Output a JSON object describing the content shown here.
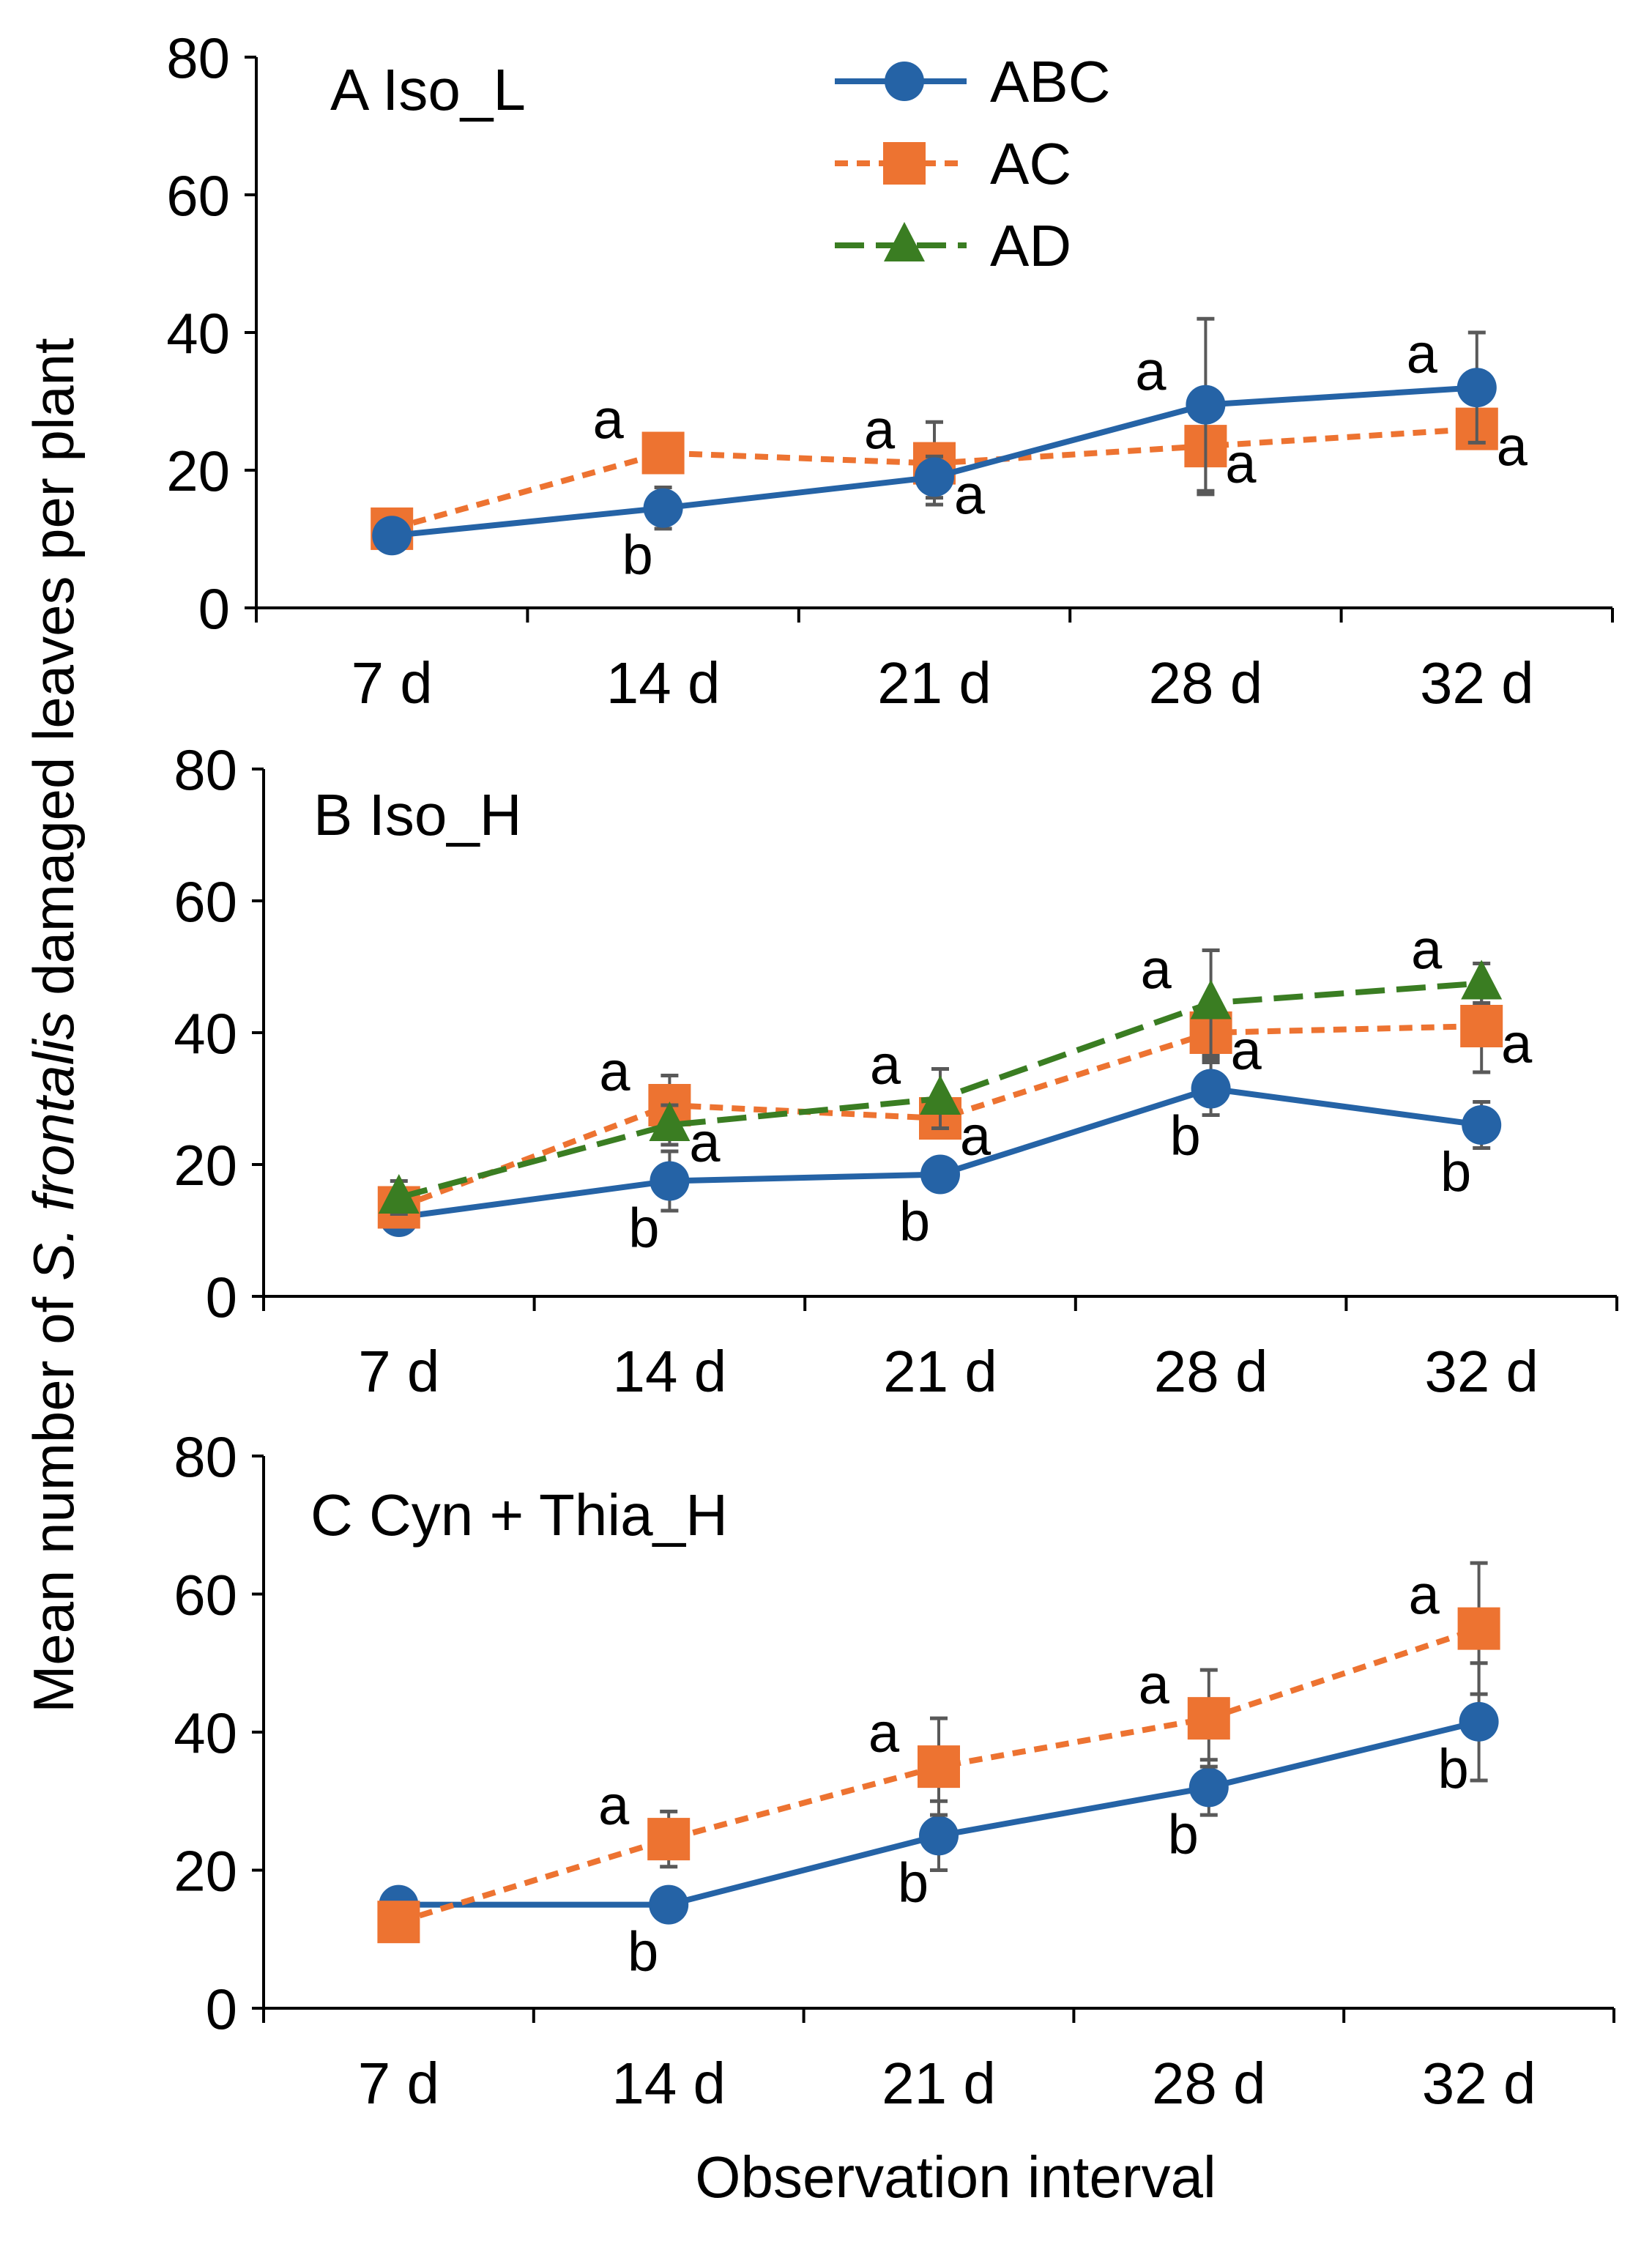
{
  "chart_data": {
    "type": "line",
    "ylabel_parts": [
      "Mean number of ",
      "S. frontalis",
      " damaged leaves per plant"
    ],
    "xlabel": "Observation interval",
    "categories": [
      "7 d",
      "14 d",
      "21 d",
      "28 d",
      "32 d"
    ],
    "yticks": [
      "0",
      "20",
      "40",
      "60",
      "80"
    ],
    "ylim": [
      0,
      80
    ],
    "legend": {
      "placement": "top-center of panel A",
      "entries": [
        {
          "name": "ABC",
          "color": "#2563a6",
          "marker": "circle",
          "dash": "solid"
        },
        {
          "name": "AC",
          "color": "#ed7331",
          "marker": "square",
          "dash": "short-dash"
        },
        {
          "name": "AD",
          "color": "#3a7d22",
          "marker": "triangle",
          "dash": "long-dash"
        }
      ]
    },
    "panels": [
      {
        "title": "A   Iso_L",
        "series": [
          {
            "name": "AC",
            "values": [
              11.5,
              22.5,
              21,
              23.5,
              26
            ],
            "errors": [
              0,
              0,
              6,
              7,
              0
            ],
            "letters": [
              "",
              "a",
              "a",
              "a",
              "a"
            ],
            "letter_pos": [
              "",
              "above",
              "above",
              "right",
              "right"
            ]
          },
          {
            "name": "ABC",
            "values": [
              10.5,
              14.5,
              19,
              29.5,
              32
            ],
            "errors": [
              0,
              3,
              3,
              12.5,
              8
            ],
            "letters": [
              "",
              "b",
              "a",
              "a",
              "a"
            ],
            "letter_pos": [
              "",
              "below",
              "right",
              "above",
              "above"
            ]
          }
        ]
      },
      {
        "title": "B   Iso_H",
        "series": [
          {
            "name": "ABC",
            "values": [
              12,
              17.5,
              18.5,
              31.5,
              26
            ],
            "errors": [
              0,
              4.5,
              0,
              4,
              3.5
            ],
            "letters": [
              "",
              "b",
              "b",
              "b",
              "b"
            ],
            "letter_pos": [
              "",
              "below",
              "below",
              "below",
              "below"
            ]
          },
          {
            "name": "AC",
            "values": [
              13.5,
              29,
              27,
              40,
              41
            ],
            "errors": [
              0,
              4.5,
              0,
              4,
              7
            ],
            "letters": [
              "",
              "a",
              "a",
              "a",
              "a"
            ],
            "letter_pos": [
              "",
              "above",
              "right",
              "right",
              "right"
            ]
          },
          {
            "name": "AD",
            "values": [
              15,
              26,
              30,
              44.5,
              47.5
            ],
            "errors": [
              2.5,
              3,
              4.5,
              8,
              3
            ],
            "letters": [
              "",
              "a",
              "a",
              "a",
              "a"
            ],
            "letter_pos": [
              "",
              "right",
              "above",
              "above",
              "above"
            ]
          }
        ]
      },
      {
        "title": "C   Cyn + Thia_H",
        "series": [
          {
            "name": "ABC",
            "values": [
              15,
              15,
              25,
              32,
              41.5
            ],
            "errors": [
              0,
              2,
              5,
              4,
              8.5
            ],
            "letters": [
              "",
              "b",
              "b",
              "b",
              "b"
            ],
            "letter_pos": [
              "",
              "below",
              "below",
              "below",
              "below"
            ]
          },
          {
            "name": "AC",
            "values": [
              12.5,
              24.5,
              35,
              42,
              55
            ],
            "errors": [
              0,
              4,
              7,
              7,
              9.5
            ],
            "letters": [
              "",
              "a",
              "a",
              "a",
              "a"
            ],
            "letter_pos": [
              "",
              "above",
              "above",
              "above",
              "above"
            ]
          }
        ]
      }
    ]
  }
}
